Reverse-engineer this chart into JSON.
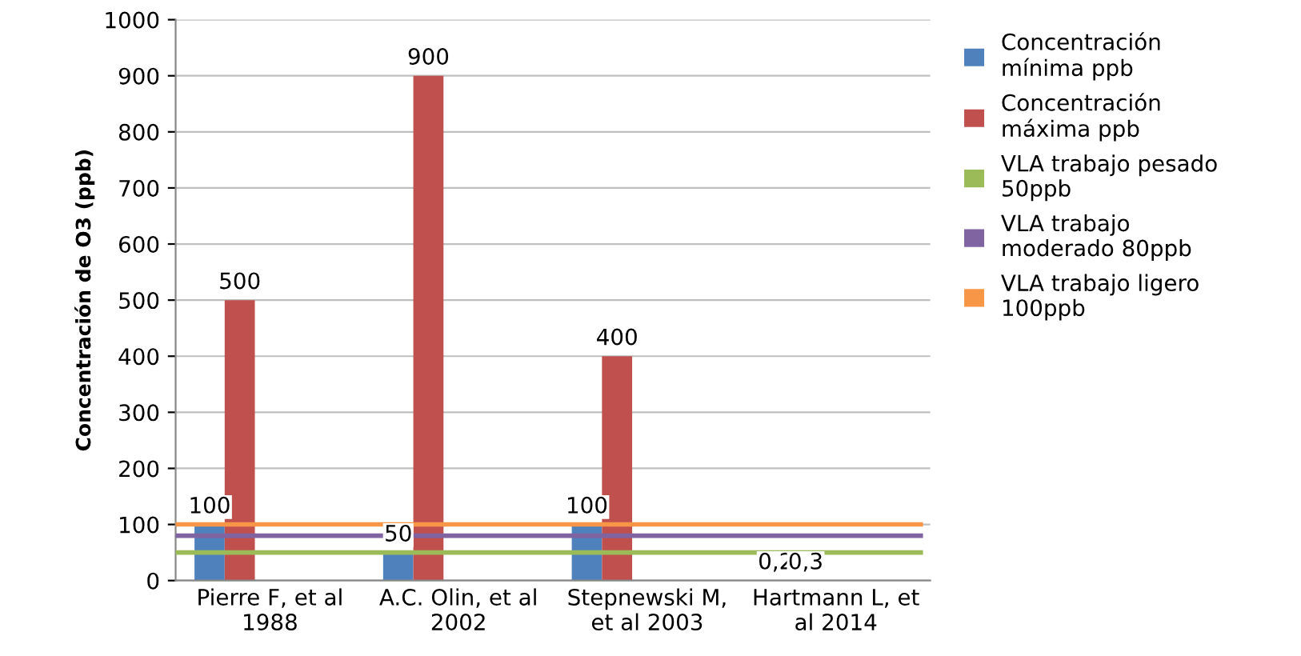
{
  "chart_data": {
    "type": "bar",
    "ylabel": "Concentración de O3 (ppb)",
    "categories": [
      "Pierre F, et al\n1988",
      "A.C. Olin, et al\n2002",
      "Stepnewski M,\net al 2003",
      "Hartmann L, et\nal 2014"
    ],
    "series": [
      {
        "name": "Concentración\nmínima ppb",
        "color": "#4f81bd",
        "values": [
          100,
          50,
          100,
          0.2
        ],
        "value_labels": [
          "100",
          "50",
          "100",
          "0,2"
        ]
      },
      {
        "name": "Concentración\nmáxima ppb",
        "color": "#c0504d",
        "values": [
          500,
          900,
          400,
          0.3
        ],
        "value_labels": [
          "500",
          "900",
          "400",
          "0,3"
        ]
      },
      {
        "name": "VLA trabajo pesado\n50ppb",
        "color": "#9bbb59",
        "values": [
          null,
          null,
          null,
          null
        ]
      },
      {
        "name": "VLA trabajo\nmoderado 80ppb",
        "color": "#8064a2",
        "values": [
          null,
          null,
          null,
          null
        ]
      },
      {
        "name": "VLA trabajo ligero\n100ppb",
        "color": "#f79646",
        "values": [
          null,
          null,
          null,
          null
        ]
      }
    ],
    "ref_lines": [
      {
        "axis": "y",
        "value": 50,
        "color": "#9bbb59"
      },
      {
        "axis": "y",
        "value": 80,
        "color": "#8064a2"
      },
      {
        "axis": "y",
        "value": 100,
        "color": "#f79646"
      }
    ],
    "ylim": [
      0,
      1000
    ],
    "yticks": [
      0,
      100,
      200,
      300,
      400,
      500,
      600,
      700,
      800,
      900,
      1000
    ],
    "grid": "y",
    "legend": "right"
  }
}
